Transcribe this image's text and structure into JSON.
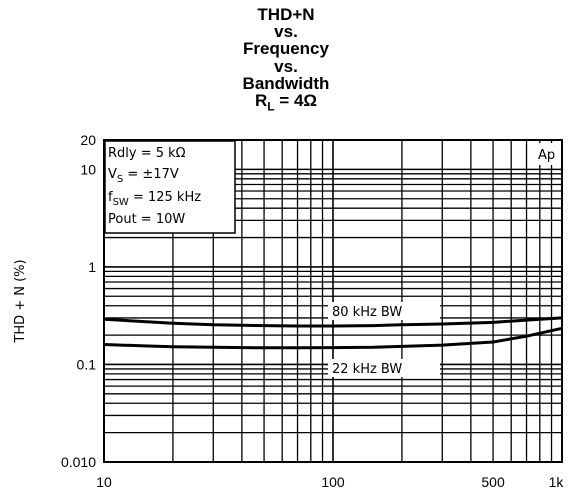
{
  "title": {
    "line1": "THD+N",
    "line2": "vs.",
    "line3": "Frequency",
    "line4": "vs.",
    "line5": "Bandwidth",
    "line6_main": "R",
    "line6_sub": "L",
    "line6_rest": " = 4Ω"
  },
  "chart_data": {
    "type": "line",
    "title": "THD+N vs. Frequency vs. Bandwidth RL = 4Ω",
    "xlabel": "",
    "ylabel": "THD + N (%)",
    "xscale": "log",
    "yscale": "log",
    "xlim": [
      10,
      1000
    ],
    "ylim": [
      0.01,
      20
    ],
    "grid": true,
    "x_ticks": [
      {
        "value": 10,
        "label": "10"
      },
      {
        "value": 100,
        "label": "100"
      },
      {
        "value": 500,
        "label": "500"
      },
      {
        "value": 1000,
        "label": "1k"
      }
    ],
    "y_ticks": [
      {
        "value": 20,
        "label": "20"
      },
      {
        "value": 10,
        "label": "10"
      },
      {
        "value": 1,
        "label": "1"
      },
      {
        "value": 0.1,
        "label": "0.1"
      },
      {
        "value": 0.01,
        "label": "0.010"
      }
    ],
    "corner_label": "Ap",
    "conditions": {
      "rdly": "Rdly = 5 kΩ",
      "vs_main": "V",
      "vs_sub": "S",
      "vs_rest": " = ±17V",
      "fsw_main": "f",
      "fsw_sub": "SW",
      "fsw_rest": " = 125 kHz",
      "pout": "Pout = 10W"
    },
    "series": [
      {
        "name": "80 kHz BW",
        "x": [
          10,
          15,
          20,
          30,
          50,
          70,
          100,
          150,
          200,
          300,
          500,
          700,
          1000
        ],
        "y": [
          0.29,
          0.275,
          0.265,
          0.255,
          0.25,
          0.248,
          0.248,
          0.25,
          0.255,
          0.26,
          0.27,
          0.285,
          0.3
        ]
      },
      {
        "name": "22 kHz BW",
        "x": [
          10,
          15,
          20,
          30,
          50,
          70,
          100,
          150,
          200,
          300,
          500,
          700,
          1000
        ],
        "y": [
          0.16,
          0.155,
          0.152,
          0.15,
          0.148,
          0.148,
          0.149,
          0.15,
          0.153,
          0.158,
          0.17,
          0.195,
          0.235
        ]
      }
    ]
  }
}
